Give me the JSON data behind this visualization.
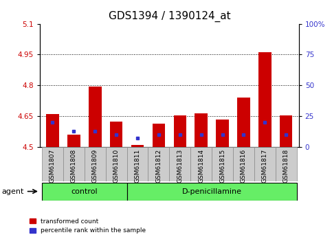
{
  "title": "GDS1394 / 1390124_at",
  "samples": [
    "GSM61807",
    "GSM61808",
    "GSM61809",
    "GSM61810",
    "GSM61811",
    "GSM61812",
    "GSM61813",
    "GSM61814",
    "GSM61815",
    "GSM61816",
    "GSM61817",
    "GSM61818"
  ],
  "red_values": [
    4.66,
    4.56,
    4.795,
    4.625,
    4.51,
    4.615,
    4.655,
    4.665,
    4.635,
    4.74,
    4.96,
    4.655
  ],
  "blue_values_pct": [
    20,
    13,
    13,
    10,
    7,
    10,
    10,
    10,
    10,
    10,
    20,
    10
  ],
  "ylim_left": [
    4.5,
    5.1
  ],
  "yticks_left": [
    4.5,
    4.65,
    4.8,
    4.95,
    5.1
  ],
  "yticks_right": [
    0,
    25,
    50,
    75,
    100
  ],
  "y_min": 4.5,
  "y_max": 5.1,
  "red_color": "#cc0000",
  "blue_color": "#3333cc",
  "bar_width": 0.6,
  "control_count": 4,
  "control_label": "control",
  "treatment_label": "D-penicillamine",
  "agent_label": "agent",
  "legend_red": "transformed count",
  "legend_blue": "percentile rank within the sample",
  "green_color": "#66ee66",
  "gray_tickbg": "#cccccc",
  "tick_label_color_left": "#cc0000",
  "tick_label_color_right": "#3333cc",
  "title_fontsize": 11,
  "tick_fontsize": 7.5,
  "sample_fontsize": 6.5
}
